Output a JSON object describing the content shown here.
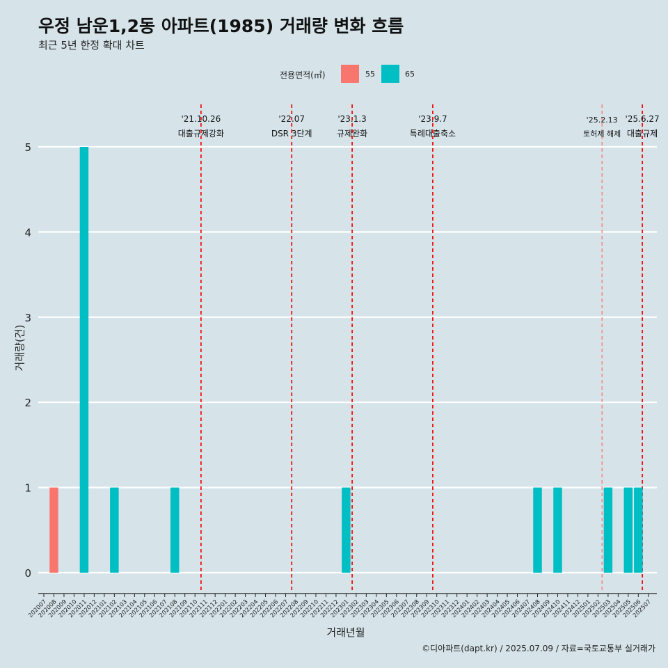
{
  "header": {
    "title": "우정 남운1,2동 아파트(1985) 거래량 변화 흐름",
    "subtitle": "최근 5년 한정 확대 차트"
  },
  "legend": {
    "title": "전용면적(㎡)",
    "items": [
      {
        "label": "55",
        "color": "#f8766d"
      },
      {
        "label": "65",
        "color": "#00bfc4"
      }
    ]
  },
  "footer": {
    "credit": "©디아파트(dapt.kr) / 2025.07.09 / 자료=국토교통부 실거래가"
  },
  "chart_data": {
    "type": "bar",
    "xlabel": "거래년월",
    "ylabel": "거래량(건)",
    "ylim": [
      0,
      5
    ],
    "yticks": [
      0,
      1,
      2,
      3,
      4,
      5
    ],
    "grid": "horizontal",
    "legend_position": "top",
    "categories": [
      "202007",
      "202008",
      "202009",
      "202010",
      "202011",
      "202012",
      "202101",
      "202102",
      "202103",
      "202104",
      "202105",
      "202106",
      "202107",
      "202108",
      "202109",
      "202110",
      "202111",
      "202112",
      "202201",
      "202202",
      "202203",
      "202204",
      "202205",
      "202206",
      "202207",
      "202208",
      "202209",
      "202210",
      "202211",
      "202212",
      "202301",
      "202302",
      "202303",
      "202304",
      "202305",
      "202306",
      "202307",
      "202308",
      "202309",
      "202310",
      "202311",
      "202312",
      "202401",
      "202402",
      "202403",
      "202404",
      "202405",
      "202406",
      "202407",
      "202408",
      "202409",
      "202410",
      "202411",
      "202412",
      "202501",
      "202502",
      "202503",
      "202504",
      "202505",
      "202506",
      "202507"
    ],
    "bars": [
      {
        "month": "202008",
        "area": "55",
        "value": 1
      },
      {
        "month": "202011",
        "area": "65",
        "value": 5
      },
      {
        "month": "202102",
        "area": "65",
        "value": 1
      },
      {
        "month": "202108",
        "area": "65",
        "value": 1
      },
      {
        "month": "202301",
        "area": "65",
        "value": 1
      },
      {
        "month": "202408",
        "area": "65",
        "value": 1
      },
      {
        "month": "202410",
        "area": "65",
        "value": 1
      },
      {
        "month": "202503",
        "area": "65",
        "value": 1
      },
      {
        "month": "202505",
        "area": "65",
        "value": 1
      },
      {
        "month": "202506",
        "area": "65",
        "value": 1
      }
    ],
    "annotations": [
      {
        "x": 15.6,
        "date": "'21.10.26",
        "text": "대출규제강화",
        "style": "major"
      },
      {
        "x": 24.6,
        "date": "'22.07",
        "text": "DSR 3단계",
        "style": "major"
      },
      {
        "x": 30.6,
        "date": "'23.1.3",
        "text": "규제완화",
        "style": "major"
      },
      {
        "x": 38.6,
        "date": "'23.9.7",
        "text": "특례대출축소",
        "style": "major"
      },
      {
        "x": 55.4,
        "date": "'25.2.13",
        "text": "토허제 해제",
        "style": "minor"
      },
      {
        "x": 59.4,
        "date": "'25.6.27",
        "text": "대출규제",
        "style": "major"
      }
    ]
  }
}
